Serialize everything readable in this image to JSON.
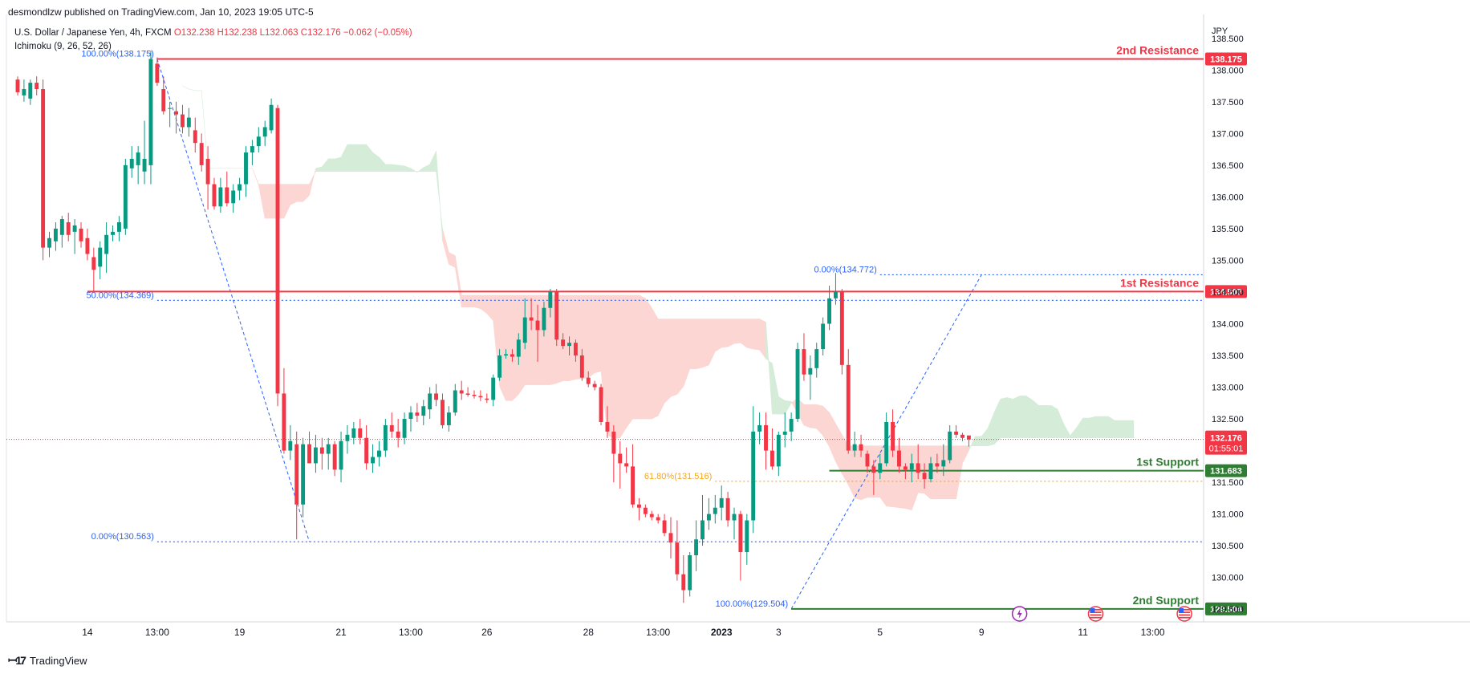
{
  "header": {
    "published": "desmondlzw published on TradingView.com, Jan 10, 2023 19:05 UTC-5"
  },
  "legend": {
    "symbol": "U.S. Dollar / Japanese Yen, 4h, FXCM",
    "open": "O132.238",
    "high": "H132.238",
    "low": "L132.063",
    "close": "C132.176",
    "change": "−0.062 (−0.05%)",
    "indicator": "Ichimoku (9, 26, 52, 26)"
  },
  "brand": {
    "name": "TradingView"
  },
  "colors": {
    "up": "#089981",
    "down": "#f23645",
    "resistance": "#f23645",
    "support": "#2e7d32",
    "fib": "#2962ff",
    "fib_golden": "#f5a623",
    "cloud_bear": "#fcd6d3",
    "cloud_bull": "#d5ecd9"
  },
  "chart_data": {
    "type": "candlestick",
    "symbol": "USDJPY",
    "currency_label": "JPY",
    "ylim": [
      129.3,
      138.75
    ],
    "y_ticks": [
      "129.500",
      "130.000",
      "130.500",
      "131.000",
      "131.500",
      "132.000",
      "132.500",
      "133.000",
      "133.500",
      "134.000",
      "134.500",
      "135.000",
      "135.500",
      "136.000",
      "136.500",
      "137.000",
      "137.500",
      "138.000",
      "138.500"
    ],
    "x_ticks": [
      {
        "label": "14",
        "i": 11
      },
      {
        "label": "13:00",
        "i": 22
      },
      {
        "label": "19",
        "i": 35
      },
      {
        "label": "21",
        "i": 51
      },
      {
        "label": "13:00",
        "i": 62
      },
      {
        "label": "26",
        "i": 74
      },
      {
        "label": "28",
        "i": 90
      },
      {
        "label": "13:00",
        "i": 101
      },
      {
        "label": "2023",
        "i": 111
      },
      {
        "label": "3",
        "i": 120
      },
      {
        "label": "5",
        "i": 136
      },
      {
        "label": "9",
        "i": 152
      },
      {
        "label": "11",
        "i": 168
      },
      {
        "label": "13:00",
        "i": 179
      }
    ],
    "candles": [
      [
        137.85,
        137.9,
        137.6,
        137.65
      ],
      [
        137.6,
        137.85,
        137.5,
        137.7
      ],
      [
        137.55,
        137.85,
        137.45,
        137.8
      ],
      [
        137.8,
        137.9,
        137.6,
        137.7
      ],
      [
        137.7,
        137.85,
        135.0,
        135.2
      ],
      [
        135.2,
        135.45,
        135.05,
        135.35
      ],
      [
        135.3,
        135.6,
        135.15,
        135.5
      ],
      [
        135.4,
        135.7,
        135.2,
        135.65
      ],
      [
        135.6,
        135.75,
        135.3,
        135.4
      ],
      [
        135.45,
        135.65,
        135.1,
        135.55
      ],
      [
        135.5,
        135.6,
        135.2,
        135.3
      ],
      [
        135.35,
        135.5,
        135.0,
        135.1
      ],
      [
        135.05,
        135.2,
        134.5,
        134.85
      ],
      [
        134.9,
        135.3,
        134.7,
        135.2
      ],
      [
        135.1,
        135.6,
        134.8,
        135.4
      ],
      [
        135.4,
        135.55,
        135.3,
        135.45
      ],
      [
        135.45,
        135.7,
        135.3,
        135.6
      ],
      [
        135.5,
        136.6,
        135.4,
        136.5
      ],
      [
        136.45,
        136.8,
        136.3,
        136.6
      ],
      [
        136.5,
        136.8,
        136.2,
        136.7
      ],
      [
        136.4,
        137.2,
        136.2,
        136.6
      ],
      [
        136.5,
        138.3,
        136.2,
        138.175
      ],
      [
        138.1,
        138.2,
        137.75,
        137.8
      ],
      [
        137.7,
        137.9,
        137.3,
        137.35
      ],
      [
        137.4,
        137.5,
        137.1,
        137.4
      ],
      [
        137.35,
        137.5,
        137.0,
        137.3
      ],
      [
        137.3,
        137.45,
        137.0,
        137.1
      ],
      [
        137.1,
        137.4,
        136.95,
        137.25
      ],
      [
        137.05,
        137.25,
        136.7,
        136.85
      ],
      [
        136.85,
        137.0,
        136.4,
        136.5
      ],
      [
        136.6,
        136.8,
        135.8,
        136.2
      ],
      [
        136.2,
        136.3,
        135.8,
        135.85
      ],
      [
        135.85,
        136.3,
        135.75,
        136.15
      ],
      [
        136.15,
        136.4,
        135.85,
        135.9
      ],
      [
        135.9,
        136.2,
        135.75,
        136.1
      ],
      [
        136.1,
        136.3,
        135.95,
        136.2
      ],
      [
        136.2,
        136.8,
        136.0,
        136.7
      ],
      [
        136.7,
        136.9,
        136.5,
        136.8
      ],
      [
        136.8,
        137.1,
        136.7,
        136.95
      ],
      [
        136.95,
        137.2,
        136.8,
        137.1
      ],
      [
        137.05,
        137.55,
        137.0,
        137.45
      ],
      [
        137.4,
        137.45,
        132.7,
        132.9
      ],
      [
        132.9,
        133.3,
        131.95,
        132.0
      ],
      [
        132.0,
        132.4,
        131.85,
        132.15
      ],
      [
        132.1,
        132.3,
        130.6,
        131.15
      ],
      [
        131.15,
        132.2,
        130.95,
        132.1
      ],
      [
        132.1,
        132.3,
        131.8,
        131.8
      ],
      [
        131.8,
        132.25,
        131.65,
        132.05
      ],
      [
        132.05,
        132.2,
        131.7,
        131.95
      ],
      [
        131.95,
        132.2,
        131.7,
        132.1
      ],
      [
        132.1,
        132.15,
        131.6,
        131.7
      ],
      [
        131.7,
        132.3,
        131.5,
        132.15
      ],
      [
        132.15,
        132.4,
        131.95,
        132.25
      ],
      [
        132.2,
        132.45,
        132.1,
        132.35
      ],
      [
        132.35,
        132.5,
        132.1,
        132.2
      ],
      [
        132.2,
        132.4,
        131.7,
        131.8
      ],
      [
        131.8,
        132.1,
        131.65,
        131.9
      ],
      [
        131.9,
        132.15,
        131.75,
        132.0
      ],
      [
        132.0,
        132.5,
        131.9,
        132.4
      ],
      [
        132.4,
        132.6,
        132.2,
        132.3
      ],
      [
        132.3,
        132.5,
        132.05,
        132.2
      ],
      [
        132.2,
        132.6,
        132.1,
        132.5
      ],
      [
        132.5,
        132.7,
        132.3,
        132.6
      ],
      [
        132.6,
        132.75,
        132.45,
        132.55
      ],
      [
        132.55,
        132.8,
        132.4,
        132.7
      ],
      [
        132.65,
        133.0,
        132.5,
        132.9
      ],
      [
        132.9,
        133.05,
        132.7,
        132.8
      ],
      [
        132.8,
        132.9,
        132.35,
        132.4
      ],
      [
        132.4,
        132.7,
        132.3,
        132.6
      ],
      [
        132.6,
        133.05,
        132.55,
        132.95
      ],
      [
        132.95,
        133.1,
        132.8,
        132.9
      ],
      [
        132.9,
        133.0,
        132.85,
        132.88
      ],
      [
        132.88,
        132.95,
        132.82,
        132.86
      ],
      [
        132.86,
        132.95,
        132.78,
        132.84
      ],
      [
        132.82,
        132.9,
        132.75,
        132.8
      ],
      [
        132.8,
        133.2,
        132.7,
        133.15
      ],
      [
        133.15,
        133.6,
        133.1,
        133.5
      ],
      [
        133.5,
        133.6,
        133.45,
        133.52
      ],
      [
        133.52,
        133.6,
        133.4,
        133.48
      ],
      [
        133.48,
        133.85,
        133.35,
        133.75
      ],
      [
        133.7,
        134.4,
        133.6,
        134.1
      ],
      [
        134.1,
        134.4,
        133.9,
        134.05
      ],
      [
        134.05,
        134.3,
        133.4,
        133.9
      ],
      [
        133.9,
        134.35,
        133.8,
        134.25
      ],
      [
        134.25,
        134.55,
        134.1,
        134.5
      ],
      [
        134.5,
        134.55,
        133.65,
        133.75
      ],
      [
        133.75,
        133.85,
        133.6,
        133.65
      ],
      [
        133.65,
        133.8,
        133.5,
        133.7
      ],
      [
        133.7,
        133.75,
        133.4,
        133.5
      ],
      [
        133.5,
        133.6,
        133.1,
        133.15
      ],
      [
        133.15,
        133.25,
        133.0,
        133.05
      ],
      [
        133.05,
        133.1,
        132.95,
        133.0
      ],
      [
        133.0,
        133.05,
        132.4,
        132.45
      ],
      [
        132.45,
        132.7,
        132.2,
        132.3
      ],
      [
        132.3,
        132.4,
        131.5,
        131.95
      ],
      [
        131.95,
        132.15,
        131.4,
        131.8
      ],
      [
        131.8,
        132.05,
        131.65,
        131.75
      ],
      [
        131.75,
        132.1,
        131.1,
        131.15
      ],
      [
        131.15,
        131.25,
        130.9,
        131.1
      ],
      [
        131.1,
        131.15,
        130.95,
        131.0
      ],
      [
        131.0,
        131.05,
        130.9,
        130.95
      ],
      [
        130.95,
        131.0,
        130.85,
        130.9
      ],
      [
        130.9,
        131.0,
        130.65,
        130.7
      ],
      [
        130.7,
        130.95,
        130.3,
        130.55
      ],
      [
        130.55,
        130.9,
        129.95,
        130.05
      ],
      [
        130.05,
        130.35,
        129.6,
        129.8
      ],
      [
        129.8,
        130.4,
        129.7,
        130.35
      ],
      [
        130.35,
        130.9,
        130.1,
        130.6
      ],
      [
        130.6,
        131.3,
        130.5,
        130.9
      ],
      [
        130.9,
        131.25,
        130.75,
        131.0
      ],
      [
        131.0,
        131.3,
        130.85,
        131.1
      ],
      [
        131.1,
        131.45,
        130.9,
        131.25
      ],
      [
        131.25,
        131.35,
        130.8,
        130.9
      ],
      [
        130.9,
        131.1,
        130.6,
        131.0
      ],
      [
        131.0,
        131.05,
        129.95,
        130.4
      ],
      [
        130.4,
        131.0,
        130.2,
        130.9
      ],
      [
        130.9,
        132.7,
        130.7,
        132.3
      ],
      [
        132.3,
        132.6,
        132.1,
        132.4
      ],
      [
        132.4,
        132.6,
        131.7,
        132.0
      ],
      [
        132.0,
        132.35,
        131.7,
        131.75
      ],
      [
        131.75,
        132.3,
        131.6,
        132.25
      ],
      [
        132.25,
        132.6,
        132.05,
        132.3
      ],
      [
        132.3,
        132.6,
        132.15,
        132.5
      ],
      [
        132.5,
        133.7,
        132.45,
        133.6
      ],
      [
        133.6,
        133.85,
        133.1,
        133.2
      ],
      [
        133.2,
        133.5,
        132.8,
        133.3
      ],
      [
        133.3,
        133.7,
        133.15,
        133.6
      ],
      [
        133.6,
        134.1,
        133.5,
        134.0
      ],
      [
        134.0,
        134.6,
        133.9,
        134.4
      ],
      [
        134.4,
        134.8,
        134.3,
        134.5
      ],
      [
        134.5,
        134.55,
        133.2,
        133.35
      ],
      [
        133.35,
        133.6,
        131.95,
        132.0
      ],
      [
        132.0,
        132.3,
        131.9,
        132.1
      ],
      [
        132.1,
        132.25,
        131.9,
        132.0
      ],
      [
        131.95,
        132.0,
        131.65,
        131.75
      ],
      [
        131.75,
        131.85,
        131.3,
        131.65
      ],
      [
        131.65,
        131.95,
        131.55,
        131.8
      ],
      [
        131.8,
        132.6,
        131.75,
        132.45
      ],
      [
        132.45,
        132.65,
        131.9,
        132.0
      ],
      [
        132.0,
        132.2,
        131.65,
        131.75
      ],
      [
        131.75,
        131.8,
        131.55,
        131.7
      ],
      [
        131.7,
        131.95,
        131.5,
        131.8
      ],
      [
        131.8,
        132.1,
        131.55,
        131.65
      ],
      [
        131.65,
        131.8,
        131.4,
        131.55
      ],
      [
        131.55,
        131.9,
        131.5,
        131.8
      ],
      [
        131.8,
        131.95,
        131.65,
        131.75
      ],
      [
        131.75,
        132.1,
        131.6,
        131.85
      ],
      [
        131.85,
        132.4,
        131.8,
        132.3
      ],
      [
        132.3,
        132.4,
        132.2,
        132.25
      ],
      [
        132.25,
        132.28,
        132.15,
        132.2
      ],
      [
        132.238,
        132.238,
        132.063,
        132.176
      ]
    ],
    "last_price": {
      "value": 132.176,
      "label": "132.176",
      "countdown": "01:55:01"
    },
    "levels": [
      {
        "name": "2nd Resistance",
        "value": 138.175,
        "label": "138.175",
        "kind": "resistance"
      },
      {
        "name": "1st Resistance",
        "value": 134.507,
        "label": "134.507",
        "kind": "resistance"
      },
      {
        "name": "1st Support",
        "value": 131.683,
        "label": "131.683",
        "kind": "support"
      },
      {
        "name": "2nd Support",
        "value": 129.504,
        "label": "129.504",
        "kind": "support"
      }
    ],
    "fib_annotations": [
      {
        "text": "100.00%(138.175)",
        "value": 138.175
      },
      {
        "text": "50.00%(134.369)",
        "value": 134.369
      },
      {
        "text": "0.00%(130.563)",
        "value": 130.563
      },
      {
        "text": "0.00%(134.772)",
        "value": 134.772
      },
      {
        "text": "61.80%(131.516)",
        "value": 131.516
      },
      {
        "text": "100.00%(129.504)",
        "value": 129.504
      }
    ],
    "fib_trendlines": [
      {
        "from": [
          22,
          138.175
        ],
        "to": [
          46,
          130.563
        ]
      },
      {
        "from": [
          122,
          129.504
        ],
        "to": [
          152,
          134.772
        ]
      }
    ],
    "event_icons": [
      "lightning-icon",
      "us-flag-icon",
      "us-flag-icon"
    ]
  }
}
